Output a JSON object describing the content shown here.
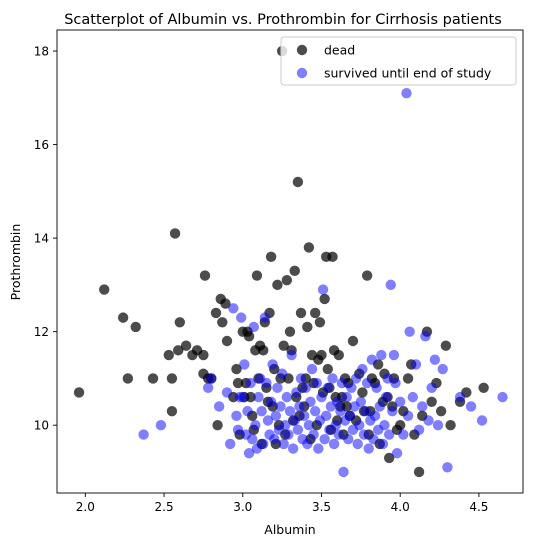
{
  "chart_data": {
    "type": "scatter",
    "title": "Scatterplot of Albumin vs. Prothrombin for Cirrhosis patients",
    "xlabel": "Albumin",
    "ylabel": "Prothrombin",
    "xlim": [
      1.82,
      4.78
    ],
    "ylim": [
      8.55,
      18.45
    ],
    "xticks": [
      "2.0",
      "2.5",
      "3.0",
      "3.5",
      "4.0",
      "4.5"
    ],
    "xtick_values": [
      2.0,
      2.5,
      3.0,
      3.5,
      4.0,
      4.5
    ],
    "yticks": [
      "10",
      "12",
      "14",
      "16",
      "18"
    ],
    "ytick_values": [
      10,
      12,
      14,
      16,
      18
    ],
    "grid": false,
    "legend_position": "top-right",
    "series": [
      {
        "name": "dead",
        "color": "#000000",
        "alpha": 0.7,
        "points": [
          [
            1.96,
            10.7
          ],
          [
            2.12,
            12.9
          ],
          [
            2.24,
            12.3
          ],
          [
            2.27,
            11.0
          ],
          [
            2.32,
            12.1
          ],
          [
            2.43,
            11.0
          ],
          [
            2.53,
            11.5
          ],
          [
            2.55,
            11.0
          ],
          [
            2.55,
            10.3
          ],
          [
            2.57,
            14.1
          ],
          [
            2.59,
            11.6
          ],
          [
            2.6,
            12.2
          ],
          [
            2.64,
            11.7
          ],
          [
            2.68,
            11.5
          ],
          [
            2.71,
            11.6
          ],
          [
            2.75,
            11.1
          ],
          [
            2.75,
            11.5
          ],
          [
            2.76,
            13.2
          ],
          [
            2.78,
            11.0
          ],
          [
            2.8,
            11.0
          ],
          [
            2.83,
            12.4
          ],
          [
            2.84,
            10.0
          ],
          [
            2.86,
            12.7
          ],
          [
            2.87,
            12.2
          ],
          [
            2.89,
            12.6
          ],
          [
            2.9,
            11.8
          ],
          [
            2.94,
            10.6
          ],
          [
            2.96,
            11.2
          ],
          [
            2.97,
            10.9
          ],
          [
            2.98,
            9.8
          ],
          [
            3.0,
            12.0
          ],
          [
            3.01,
            10.6
          ],
          [
            3.02,
            10.9
          ],
          [
            3.03,
            12.0
          ],
          [
            3.04,
            11.9
          ],
          [
            3.05,
            10.6
          ],
          [
            3.06,
            10.2
          ],
          [
            3.07,
            9.9
          ],
          [
            3.08,
            11.6
          ],
          [
            3.09,
            13.2
          ],
          [
            3.1,
            11.0
          ],
          [
            3.11,
            11.7
          ],
          [
            3.12,
            9.6
          ],
          [
            3.13,
            11.6
          ],
          [
            3.14,
            12.2
          ],
          [
            3.15,
            10.8
          ],
          [
            3.16,
            10.5
          ],
          [
            3.17,
            12.4
          ],
          [
            3.18,
            13.6
          ],
          [
            3.19,
            10.4
          ],
          [
            3.2,
            11.2
          ],
          [
            3.21,
            9.6
          ],
          [
            3.22,
            13.0
          ],
          [
            3.23,
            10.0
          ],
          [
            3.24,
            11.0
          ],
          [
            3.25,
            18.0
          ],
          [
            3.26,
            11.7
          ],
          [
            3.27,
            9.8
          ],
          [
            3.28,
            13.1
          ],
          [
            3.29,
            11.0
          ],
          [
            3.3,
            12.0
          ],
          [
            3.31,
            11.6
          ],
          [
            3.32,
            10.1
          ],
          [
            3.33,
            13.3
          ],
          [
            3.34,
            10.6
          ],
          [
            3.35,
            15.2
          ],
          [
            3.36,
            10.2
          ],
          [
            3.37,
            12.4
          ],
          [
            3.38,
            10.8
          ],
          [
            3.39,
            10.4
          ],
          [
            3.4,
            11.0
          ],
          [
            3.41,
            12.1
          ],
          [
            3.42,
            13.8
          ],
          [
            3.43,
            9.7
          ],
          [
            3.44,
            11.5
          ],
          [
            3.45,
            10.9
          ],
          [
            3.46,
            12.4
          ],
          [
            3.47,
            10.0
          ],
          [
            3.48,
            11.4
          ],
          [
            3.49,
            12.2
          ],
          [
            3.5,
            11.5
          ],
          [
            3.51,
            10.7
          ],
          [
            3.52,
            12.7
          ],
          [
            3.53,
            13.6
          ],
          [
            3.54,
            11.2
          ],
          [
            3.55,
            10.8
          ],
          [
            3.56,
            9.9
          ],
          [
            3.57,
            13.6
          ],
          [
            3.58,
            11.6
          ],
          [
            3.59,
            10.6
          ],
          [
            3.6,
            10.1
          ],
          [
            3.61,
            11.5
          ],
          [
            3.62,
            10.4
          ],
          [
            3.63,
            10.6
          ],
          [
            3.64,
            9.8
          ],
          [
            3.65,
            11.0
          ],
          [
            3.66,
            10.4
          ],
          [
            3.67,
            10.9
          ],
          [
            3.68,
            10.2
          ],
          [
            3.7,
            11.8
          ],
          [
            3.72,
            10.1
          ],
          [
            3.74,
            11.1
          ],
          [
            3.76,
            10.7
          ],
          [
            3.77,
            10.3
          ],
          [
            3.79,
            13.2
          ],
          [
            3.8,
            9.8
          ],
          [
            3.81,
            10.3
          ],
          [
            3.82,
            11.0
          ],
          [
            3.84,
            10.9
          ],
          [
            3.86,
            11.3
          ],
          [
            3.87,
            9.6
          ],
          [
            3.89,
            10.5
          ],
          [
            3.9,
            11.1
          ],
          [
            3.92,
            10.6
          ],
          [
            3.93,
            9.3
          ],
          [
            3.95,
            10.4
          ],
          [
            3.96,
            11.0
          ],
          [
            3.98,
            9.9
          ],
          [
            4.0,
            10.0
          ],
          [
            4.02,
            10.3
          ],
          [
            4.05,
            11.0
          ],
          [
            4.07,
            11.3
          ],
          [
            4.09,
            9.8
          ],
          [
            4.12,
            9.0
          ],
          [
            4.14,
            10.2
          ],
          [
            4.17,
            12.0
          ],
          [
            4.2,
            10.5
          ],
          [
            4.23,
            10.9
          ],
          [
            4.26,
            10.3
          ],
          [
            4.29,
            11.7
          ],
          [
            4.32,
            10.0
          ],
          [
            4.38,
            10.5
          ],
          [
            4.42,
            10.7
          ],
          [
            4.53,
            10.8
          ]
        ]
      },
      {
        "name": "survived until end of study",
        "color": "#0000ff",
        "alpha": 0.5,
        "points": [
          [
            2.37,
            9.8
          ],
          [
            2.48,
            10.0
          ],
          [
            2.78,
            10.8
          ],
          [
            2.8,
            11.0
          ],
          [
            2.85,
            10.4
          ],
          [
            2.9,
            10.7
          ],
          [
            2.92,
            9.6
          ],
          [
            2.94,
            12.5
          ],
          [
            2.96,
            10.2
          ],
          [
            2.97,
            9.9
          ],
          [
            2.98,
            10.6
          ],
          [
            2.99,
            12.3
          ],
          [
            3.0,
            10.6
          ],
          [
            3.01,
            11.3
          ],
          [
            3.02,
            9.8
          ],
          [
            3.03,
            10.3
          ],
          [
            3.04,
            9.4
          ],
          [
            3.05,
            10.9
          ],
          [
            3.06,
            9.7
          ],
          [
            3.07,
            12.1
          ],
          [
            3.08,
            10.0
          ],
          [
            3.09,
            9.5
          ],
          [
            3.1,
            10.6
          ],
          [
            3.11,
            11.0
          ],
          [
            3.12,
            10.3
          ],
          [
            3.13,
            9.6
          ],
          [
            3.14,
            12.3
          ],
          [
            3.15,
            10.9
          ],
          [
            3.16,
            10.1
          ],
          [
            3.17,
            9.8
          ],
          [
            3.18,
            10.5
          ],
          [
            3.19,
            11.3
          ],
          [
            3.2,
            9.7
          ],
          [
            3.21,
            10.2
          ],
          [
            3.22,
            10.8
          ],
          [
            3.23,
            9.9
          ],
          [
            3.24,
            10.4
          ],
          [
            3.25,
            11.1
          ],
          [
            3.26,
            9.6
          ],
          [
            3.27,
            10.0
          ],
          [
            3.28,
            10.6
          ],
          [
            3.29,
            9.8
          ],
          [
            3.3,
            10.3
          ],
          [
            3.31,
            11.5
          ],
          [
            3.32,
            9.5
          ],
          [
            3.33,
            10.1
          ],
          [
            3.34,
            10.7
          ],
          [
            3.35,
            9.9
          ],
          [
            3.36,
            10.4
          ],
          [
            3.37,
            11.0
          ],
          [
            3.38,
            9.7
          ],
          [
            3.39,
            10.2
          ],
          [
            3.4,
            10.8
          ],
          [
            3.41,
            9.6
          ],
          [
            3.42,
            10.0
          ],
          [
            3.43,
            10.5
          ],
          [
            3.44,
            11.2
          ],
          [
            3.45,
            9.8
          ],
          [
            3.46,
            10.3
          ],
          [
            3.47,
            10.9
          ],
          [
            3.48,
            9.5
          ],
          [
            3.49,
            10.1
          ],
          [
            3.5,
            10.6
          ],
          [
            3.51,
            12.9
          ],
          [
            3.52,
            9.7
          ],
          [
            3.53,
            10.2
          ],
          [
            3.54,
            10.8
          ],
          [
            3.55,
            9.9
          ],
          [
            3.56,
            10.4
          ],
          [
            3.57,
            11.0
          ],
          [
            3.58,
            9.6
          ],
          [
            3.59,
            10.0
          ],
          [
            3.6,
            10.5
          ],
          [
            3.61,
            9.8
          ],
          [
            3.62,
            10.3
          ],
          [
            3.63,
            10.9
          ],
          [
            3.64,
            9.0
          ],
          [
            3.65,
            10.1
          ],
          [
            3.66,
            10.6
          ],
          [
            3.67,
            9.7
          ],
          [
            3.68,
            10.2
          ],
          [
            3.69,
            10.8
          ],
          [
            3.7,
            9.9
          ],
          [
            3.71,
            10.4
          ],
          [
            3.72,
            11.0
          ],
          [
            3.73,
            9.6
          ],
          [
            3.74,
            10.0
          ],
          [
            3.75,
            10.5
          ],
          [
            3.76,
            11.2
          ],
          [
            3.77,
            9.8
          ],
          [
            3.78,
            10.3
          ],
          [
            3.79,
            10.9
          ],
          [
            3.8,
            9.5
          ],
          [
            3.81,
            10.1
          ],
          [
            3.82,
            11.4
          ],
          [
            3.83,
            9.7
          ],
          [
            3.84,
            10.2
          ],
          [
            3.85,
            10.8
          ],
          [
            3.86,
            9.9
          ],
          [
            3.87,
            10.4
          ],
          [
            3.88,
            11.5
          ],
          [
            3.89,
            9.6
          ],
          [
            3.9,
            10.0
          ],
          [
            3.91,
            10.6
          ],
          [
            3.92,
            11.0
          ],
          [
            3.93,
            9.8
          ],
          [
            3.94,
            13.0
          ],
          [
            3.95,
            10.3
          ],
          [
            3.96,
            11.5
          ],
          [
            3.97,
            10.9
          ],
          [
            3.98,
            9.4
          ],
          [
            4.0,
            10.5
          ],
          [
            4.02,
            9.8
          ],
          [
            4.04,
            17.1
          ],
          [
            4.05,
            10.2
          ],
          [
            4.06,
            12.0
          ],
          [
            4.08,
            10.6
          ],
          [
            4.1,
            11.3
          ],
          [
            4.12,
            9.9
          ],
          [
            4.14,
            10.4
          ],
          [
            4.16,
            11.9
          ],
          [
            4.18,
            10.1
          ],
          [
            4.2,
            10.8
          ],
          [
            4.22,
            11.4
          ],
          [
            4.24,
            10.0
          ],
          [
            4.27,
            11.2
          ],
          [
            4.3,
            9.1
          ],
          [
            4.38,
            10.6
          ],
          [
            4.45,
            10.4
          ],
          [
            4.52,
            10.1
          ],
          [
            4.65,
            10.6
          ]
        ]
      }
    ]
  }
}
